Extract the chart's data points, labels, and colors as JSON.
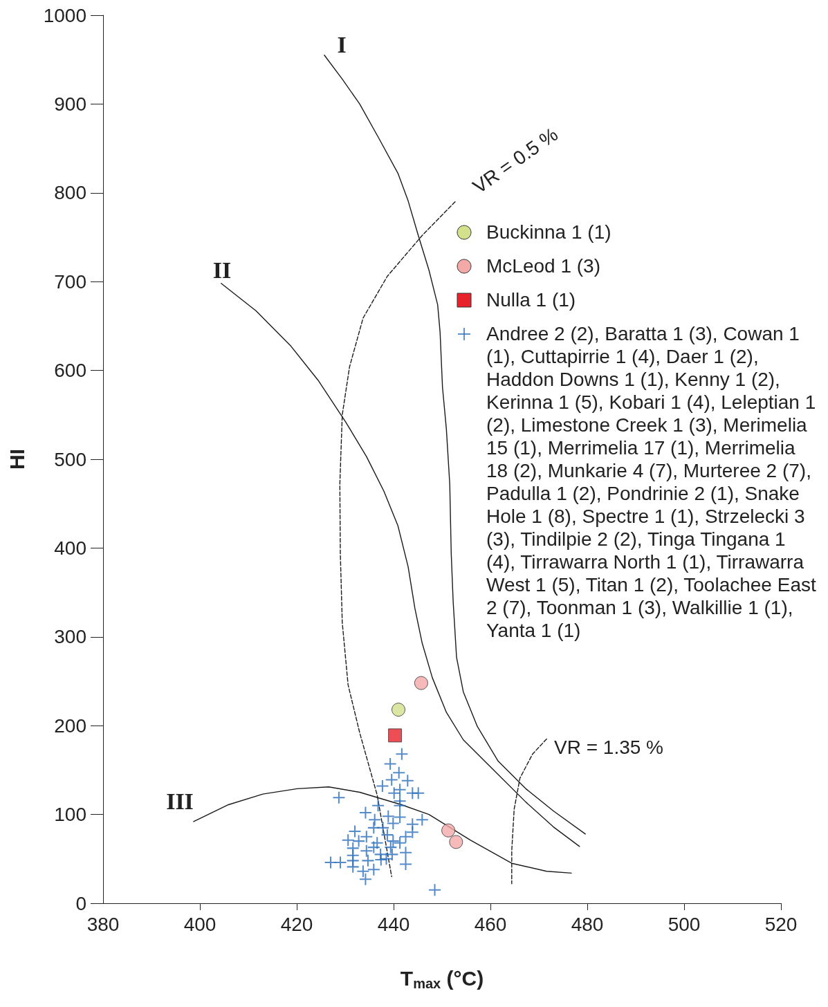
{
  "chart_data": {
    "type": "scatter",
    "xlabel": "T$_{max}$ (°C)",
    "ylabel": "HI",
    "xlim": [
      380,
      520
    ],
    "xticks": [
      380,
      400,
      420,
      440,
      460,
      480,
      500,
      520
    ],
    "ylim": [
      0,
      1000
    ],
    "yticks": [
      0,
      100,
      200,
      300,
      400,
      500,
      600,
      700,
      800,
      900,
      1000
    ],
    "grid": false,
    "legend": "top right",
    "series": [
      {
        "type": "line",
        "color": "#1a1a1a",
        "line_style": "solid",
        "marker": "none",
        "x": [
          425.7,
          429.4,
          433,
          437,
          440.9,
          443,
          445.1,
          447.3,
          449.1,
          449.6,
          450.1,
          450.9,
          451.6,
          451.9,
          452.3,
          453,
          454.4,
          457.3,
          461.6,
          467.3,
          473,
          479.6
        ],
        "values": [
          955,
          928,
          900,
          861,
          822,
          791,
          752,
          713,
          674,
          643,
          581,
          534,
          472,
          394,
          340,
          277,
          238,
          199,
          160,
          129,
          104,
          78
        ]
      },
      {
        "type": "line",
        "color": "#1a1a1a",
        "line_style": "solid",
        "marker": "none",
        "x": [
          404.4,
          411.6,
          418.7,
          424.4,
          430.1,
          434.4,
          438,
          440.9,
          443,
          444.4,
          445.9,
          448,
          450.9,
          454.4,
          460.1,
          467.3,
          473,
          478.4
        ],
        "values": [
          698,
          667,
          628,
          589,
          542,
          503,
          464,
          425,
          379,
          332,
          293,
          254,
          215,
          184,
          153,
          114,
          86,
          64
        ]
      },
      {
        "type": "line",
        "color": "#1a1a1a",
        "line_style": "solid",
        "marker": "none",
        "x": [
          398.7,
          405.9,
          413,
          420.1,
          426.6,
          433,
          441.6,
          447.3,
          455.9,
          464.4,
          471.6,
          476.7
        ],
        "values": [
          92,
          111,
          123,
          129,
          131,
          125,
          111,
          100,
          71,
          45,
          36,
          34
        ]
      },
      {
        "type": "line",
        "color": "#1a1a1a",
        "line_style": "dashed",
        "marker": "none",
        "x": [
          452.7,
          445.9,
          438.7,
          433.7,
          430.9,
          429.4,
          428.9,
          429,
          429.4,
          430.6,
          433,
          436.6,
          439.6
        ],
        "values": [
          790,
          752,
          706,
          659,
          604,
          550,
          472,
          394,
          316,
          246,
          192,
          122,
          30
        ]
      },
      {
        "type": "line",
        "color": "#1a1a1a",
        "line_style": "dashed",
        "marker": "none",
        "x": [
          471.6,
          468.7,
          466.1,
          464.9,
          464.4,
          464.4
        ],
        "values": [
          185,
          168,
          141,
          106,
          59,
          22
        ]
      },
      {
        "type": "scatter",
        "name": "Buckinna 1 (1)",
        "color": "#d3e08c",
        "marker": "circle",
        "x": [
          441
        ],
        "values": [
          218
        ]
      },
      {
        "type": "scatter",
        "name": "McLeod 1 (3)",
        "color": "#f4a9a9",
        "marker": "circle",
        "x": [
          445.7,
          451.3,
          452.9
        ],
        "values": [
          248,
          82,
          69
        ]
      },
      {
        "type": "scatter",
        "name": "Nulla 1 (1)",
        "color": "#e8222a",
        "marker": "square",
        "x": [
          440.3
        ],
        "values": [
          189
        ]
      },
      {
        "type": "scatter",
        "name": "Andree 2 (2), Baratta 1 (3), Cowan 1 (1), Cuttapirrie 1 (4), Daer 1 (2), Haddon Downs 1 (1), Kenny 1 (2), Kerinna 1 (5), Kobari 1 (4), Leleptian 1 (2), Limestone Creek 1 (3), Merimelia 15 (1), Merrimelia 17 (1), Merrimelia 18 (2), Munkarie 4 (7), Murteree 2 (7), Padulla 1 (2), Pondrinie 2 (1), Snake Hole 1 (8), Spectre 1 (1), Strzelecki 3 (3), Tindilpie 2 (2), Tinga Tingana 1 (4), Tirrawarra North 1 (1), Tirrawarra West 1 (5), Titan 1 (2), Toolachee East 2 (7), Toonman 1 (3), Walkillie 1 (1), Yanta 1 (1)",
        "color": "#2a6ebb",
        "marker": "cross",
        "x": [
          441.7,
          439.3,
          441.1,
          439.6,
          442.9,
          437.7,
          441.3,
          440.1,
          443.9,
          445.1,
          428.7,
          441.3,
          436.8,
          441.3,
          434.2,
          445.9,
          438.9,
          441.3,
          436.1,
          443.9,
          435.9,
          437.8,
          439.9,
          432,
          438.7,
          443.9,
          434.4,
          442.5,
          430.6,
          436.6,
          432.8,
          439.9,
          441.3,
          431.6,
          434.4,
          435.9,
          439.4,
          437.3,
          431.6,
          439.7,
          442.5,
          427,
          429,
          431.6,
          434.7,
          437.4,
          438.5,
          442.5,
          431.6,
          433.7,
          435.9,
          434.2,
          448.5
        ],
        "values": [
          168,
          157,
          147,
          139,
          138,
          132,
          128,
          124,
          124,
          124,
          119,
          115,
          110,
          110,
          102,
          94,
          98,
          97,
          94,
          89,
          85,
          85,
          90,
          81,
          77,
          80,
          75,
          75,
          71,
          68,
          70,
          70,
          68,
          62,
          59,
          63,
          63,
          55,
          54,
          55,
          57,
          46,
          46,
          48,
          48,
          49,
          50,
          44,
          41,
          36,
          38,
          27,
          15
        ]
      }
    ],
    "annotations": [
      "I",
      "II",
      "III",
      "VR = 0.5 %",
      "VR = 1.35 %"
    ]
  }
}
